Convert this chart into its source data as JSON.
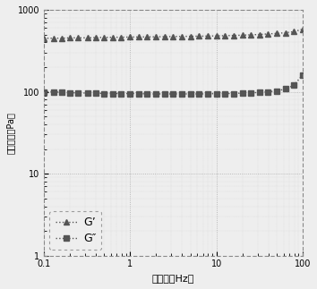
{
  "title": "",
  "xlabel": "周波数（Hz）",
  "ylabel": "貯弾性率（Pa）",
  "xlim": [
    0.1,
    100
  ],
  "ylim": [
    1,
    1000
  ],
  "x_G_prime": [
    0.1,
    0.13,
    0.16,
    0.2,
    0.25,
    0.32,
    0.4,
    0.5,
    0.63,
    0.79,
    1.0,
    1.26,
    1.58,
    2.0,
    2.51,
    3.16,
    3.98,
    5.01,
    6.31,
    7.94,
    10.0,
    12.6,
    15.8,
    20.0,
    25.1,
    31.6,
    39.8,
    50.1,
    63.1,
    79.4,
    100.0
  ],
  "y_G_prime": [
    450,
    450,
    450,
    455,
    455,
    455,
    460,
    460,
    462,
    463,
    465,
    466,
    467,
    468,
    470,
    472,
    473,
    475,
    476,
    478,
    480,
    483,
    486,
    490,
    495,
    500,
    508,
    515,
    525,
    540,
    580
  ],
  "x_G_dbl": [
    0.1,
    0.13,
    0.16,
    0.2,
    0.25,
    0.32,
    0.4,
    0.5,
    0.63,
    0.79,
    1.0,
    1.26,
    1.58,
    2.0,
    2.51,
    3.16,
    3.98,
    5.01,
    6.31,
    7.94,
    10.0,
    12.6,
    15.8,
    20.0,
    25.1,
    31.6,
    39.8,
    50.1,
    63.1,
    79.4,
    100.0
  ],
  "y_G_dbl": [
    100,
    100,
    98,
    97,
    97,
    96,
    96,
    95,
    95,
    95,
    95,
    95,
    94,
    94,
    94,
    94,
    94,
    94,
    94,
    94,
    95,
    95,
    95,
    96,
    97,
    98,
    100,
    102,
    108,
    120,
    160
  ],
  "line_color": "#555555",
  "marker_G_prime": "^",
  "marker_G_dbl": "s",
  "legend_G_prime": "G’",
  "legend_G_dbl": "G″",
  "bg_color": "#eeeeee",
  "grid_color": "#aaaaaa"
}
